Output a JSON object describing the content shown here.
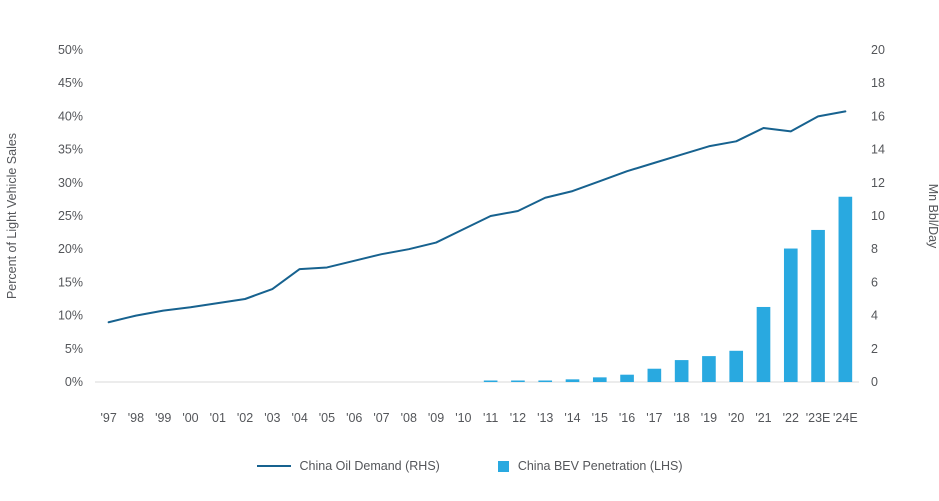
{
  "chart_data": {
    "type": "combo",
    "title": "",
    "categories": [
      "'97",
      "'98",
      "'99",
      "'00",
      "'01",
      "'02",
      "'03",
      "'04",
      "'05",
      "'06",
      "'07",
      "'08",
      "'09",
      "'10",
      "'11",
      "'12",
      "'13",
      "'14",
      "'15",
      "'16",
      "'17",
      "'18",
      "'19",
      "'20",
      "'21",
      "'22",
      "'23E",
      "'24E"
    ],
    "series": [
      {
        "name": "China Oil Demand (RHS)",
        "type": "line",
        "axis": "right",
        "color": "#17628f",
        "values": [
          3.6,
          4.0,
          4.3,
          4.5,
          4.75,
          5.0,
          5.6,
          6.8,
          6.9,
          7.3,
          7.7,
          8.0,
          8.4,
          9.2,
          10.0,
          10.3,
          11.1,
          11.5,
          12.1,
          12.7,
          13.2,
          13.7,
          14.2,
          14.5,
          15.3,
          15.1,
          16.0,
          16.3
        ]
      },
      {
        "name": "China BEV Penetration (LHS)",
        "type": "bar",
        "axis": "left",
        "color": "#29a9e0",
        "values": [
          0,
          0,
          0,
          0,
          0,
          0,
          0,
          0,
          0,
          0,
          0,
          0,
          0,
          0,
          0.1,
          0.1,
          0.2,
          0.4,
          0.7,
          1.1,
          2.0,
          3.3,
          3.9,
          4.7,
          11.3,
          20.1,
          22.9,
          27.9
        ]
      }
    ],
    "left_axis": {
      "label": "Percent of Light Vehicle Sales",
      "min": 0,
      "max": 50,
      "step": 5,
      "suffix": "%"
    },
    "right_axis": {
      "label": "Mn Bbl/Day",
      "min": 0,
      "max": 20,
      "step": 2,
      "suffix": ""
    },
    "grid": false,
    "legend_position": "bottom"
  }
}
